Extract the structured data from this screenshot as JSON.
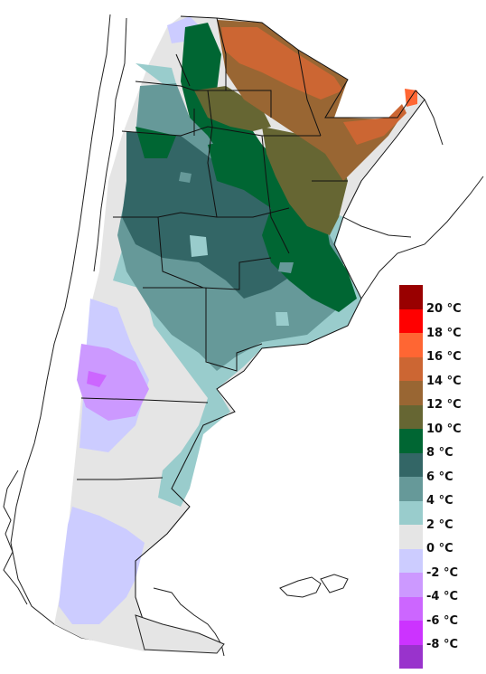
{
  "legend": {
    "items": [
      {
        "label": "20 °C",
        "color": "#990000"
      },
      {
        "label": "18 °C",
        "color": "#ff0000"
      },
      {
        "label": "16 °C",
        "color": "#ff6633"
      },
      {
        "label": "14 °C",
        "color": "#cc6633"
      },
      {
        "label": "12 °C",
        "color": "#996633"
      },
      {
        "label": "10 °C",
        "color": "#666633"
      },
      {
        "label": "8 °C",
        "color": "#006633"
      },
      {
        "label": "6 °C",
        "color": "#336666"
      },
      {
        "label": "4 °C",
        "color": "#669999"
      },
      {
        "label": "2 °C",
        "color": "#99cccc"
      },
      {
        "label": "0 °C",
        "color": "#e5e5e5"
      },
      {
        "label": "-2 °C",
        "color": "#ccccff"
      },
      {
        "label": "-4 °C",
        "color": "#cc99ff"
      },
      {
        "label": "-6 °C",
        "color": "#cc66ff"
      },
      {
        "label": "-8 °C",
        "color": "#cc33ff"
      },
      {
        "label": "",
        "color": "#9933cc"
      }
    ]
  }
}
